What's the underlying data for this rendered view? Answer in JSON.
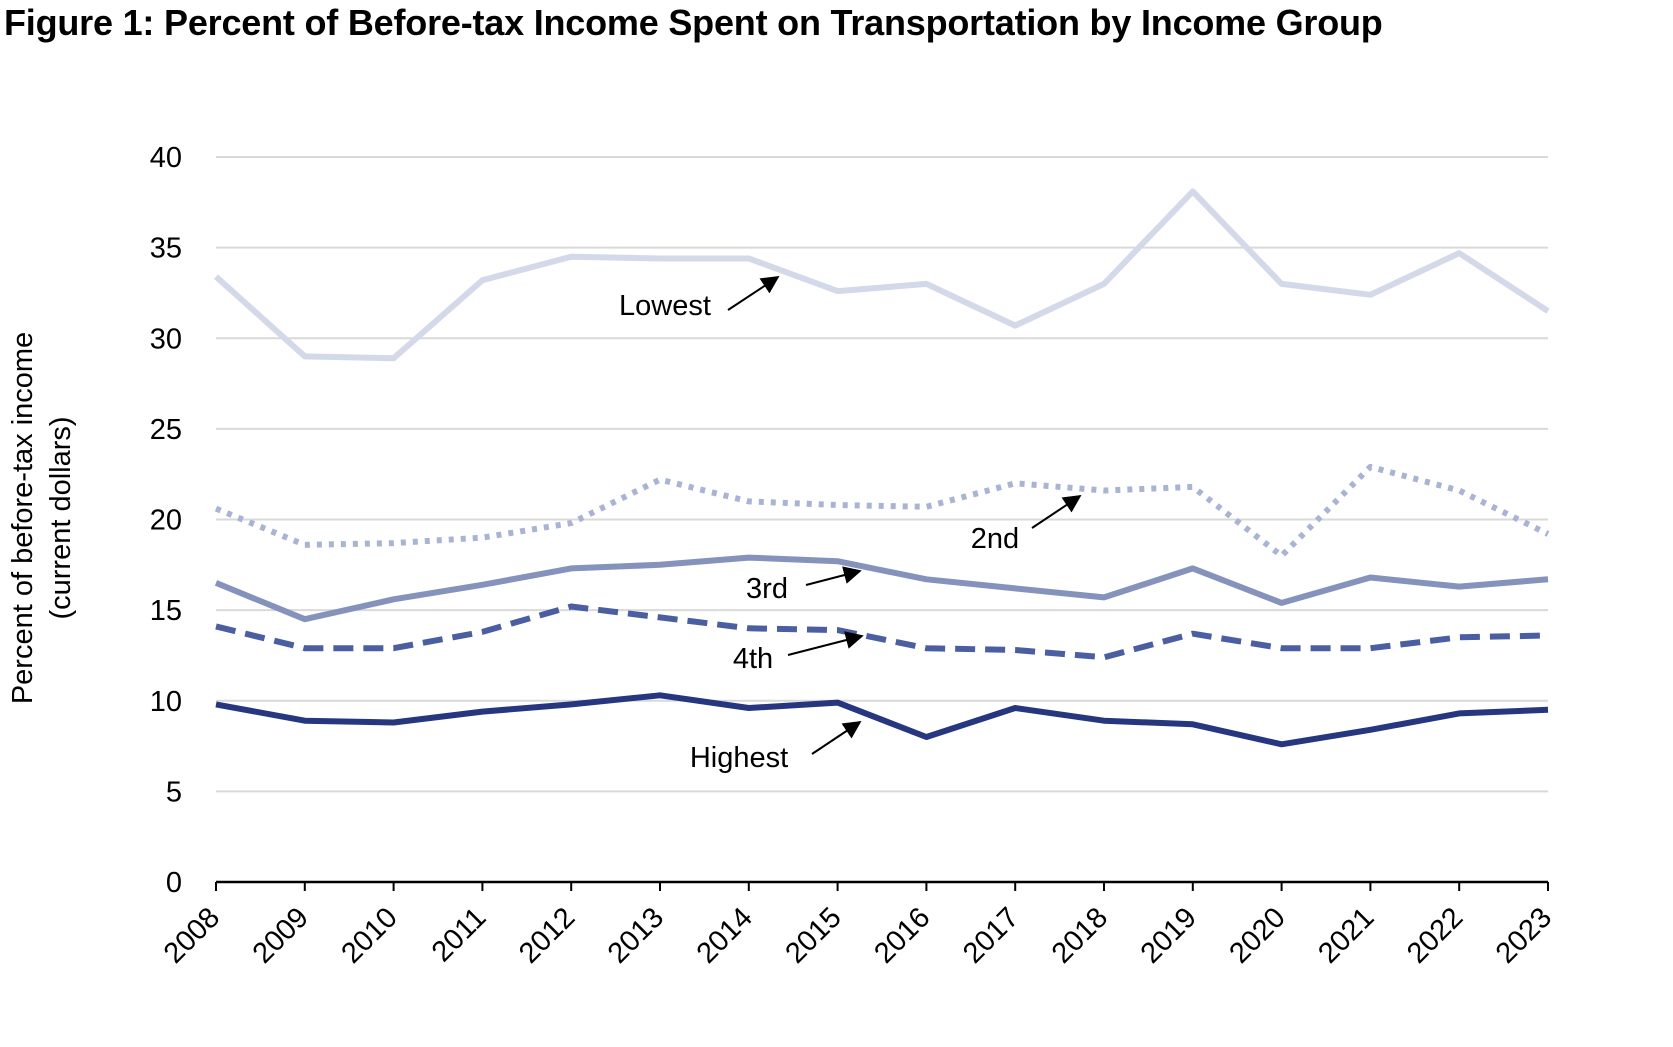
{
  "title": "Figure 1: Percent of Before-tax Income Spent on Transportation by Income Group",
  "chart_data": {
    "type": "line",
    "title": "Figure 1: Percent of Before-tax Income Spent on Transportation by Income Group",
    "xlabel": "",
    "ylabel": "Percent of before-tax income",
    "ylabel_sub": "(current dollars)",
    "ylim": [
      0,
      40
    ],
    "yticks": [
      0,
      5,
      10,
      15,
      20,
      25,
      30,
      35,
      40
    ],
    "grid": true,
    "categories": [
      "2008",
      "2009",
      "2010",
      "2011",
      "2012",
      "2013",
      "2014",
      "2015",
      "2016",
      "2017",
      "2018",
      "2019",
      "2020",
      "2021",
      "2022",
      "2023"
    ],
    "series": [
      {
        "name": "Lowest",
        "color": "#d3d9e9",
        "dash": "solid",
        "values": [
          33.4,
          29.0,
          28.9,
          33.2,
          34.5,
          34.4,
          34.4,
          32.6,
          33.0,
          30.7,
          33.0,
          38.1,
          33.0,
          32.4,
          34.7,
          31.5
        ]
      },
      {
        "name": "2nd",
        "color": "#a9b4d2",
        "dash": "dot",
        "values": [
          20.6,
          18.6,
          18.7,
          19.0,
          19.8,
          22.2,
          21.0,
          20.8,
          20.7,
          22.0,
          21.6,
          21.8,
          18.0,
          22.9,
          21.6,
          19.2
        ]
      },
      {
        "name": "3rd",
        "color": "#8592bc",
        "dash": "solid",
        "values": [
          16.5,
          14.5,
          15.6,
          16.4,
          17.3,
          17.5,
          17.9,
          17.7,
          16.7,
          16.2,
          15.7,
          17.3,
          15.4,
          16.8,
          16.3,
          16.7
        ]
      },
      {
        "name": "4th",
        "color": "#4b5ea2",
        "dash": "dash",
        "values": [
          14.1,
          12.9,
          12.9,
          13.8,
          15.2,
          14.6,
          14.0,
          13.9,
          12.9,
          12.8,
          12.4,
          13.7,
          12.9,
          12.9,
          13.5,
          13.6
        ]
      },
      {
        "name": "Highest",
        "color": "#26377f",
        "dash": "solid",
        "values": [
          9.8,
          8.9,
          8.8,
          9.4,
          9.8,
          10.3,
          9.6,
          9.9,
          8.0,
          9.6,
          8.9,
          8.7,
          7.6,
          8.4,
          9.3,
          9.5
        ]
      }
    ],
    "annotations": [
      {
        "series": "Lowest",
        "text": "Lowest"
      },
      {
        "series": "2nd",
        "text": "2nd"
      },
      {
        "series": "3rd",
        "text": "3rd"
      },
      {
        "series": "4th",
        "text": "4th"
      },
      {
        "series": "Highest",
        "text": "Highest"
      }
    ]
  }
}
